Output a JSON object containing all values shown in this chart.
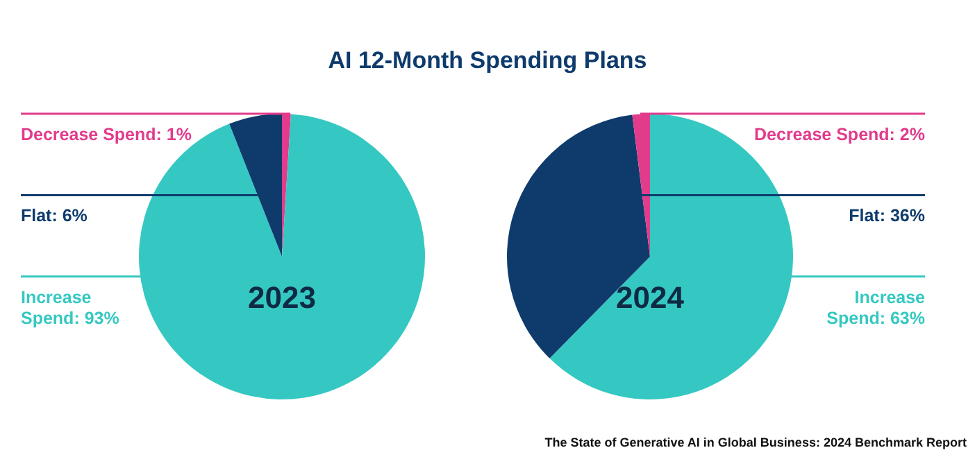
{
  "chart_data": [
    {
      "type": "pie",
      "title": "AI 12-Month Spending Plans",
      "categories": [
        "Decrease Spend",
        "Increase Spend",
        "Flat"
      ],
      "values": [
        1,
        93,
        6
      ],
      "colors": [
        "#e23b8c",
        "#35c8c2",
        "#0e3b6c"
      ],
      "value_labels": [
        "1%",
        "93%",
        "6%"
      ],
      "annotations": [
        "2023"
      ]
    },
    {
      "type": "pie",
      "categories": [
        "Increase Spend",
        "Flat",
        "Decrease Spend"
      ],
      "values": [
        63,
        36,
        2
      ],
      "colors": [
        "#35c8c2",
        "#0e3b6c",
        "#e23b8c"
      ],
      "value_labels": [
        "63%",
        "36%",
        "2%"
      ],
      "annotations": [
        "2024",
        "The State of Generative AI in Global Business: 2024 Benchmark Report"
      ]
    }
  ]
}
